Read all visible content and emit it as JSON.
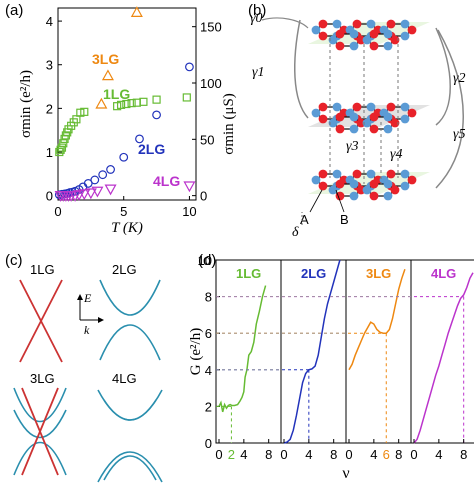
{
  "panels": {
    "a": "(a)",
    "b": "(b)",
    "c": "(c)",
    "d": "(d)"
  },
  "colors": {
    "lg1": "#66bb33",
    "lg2": "#2233bb",
    "lg3": "#ee8811",
    "lg4": "#bb33cc",
    "band": "#2a8fae",
    "band_red": "#cc3333",
    "atom_red": "#e8222a",
    "atom_blue": "#5b9bd5"
  },
  "chart_data": [
    {
      "type": "scatter",
      "panel": "(a)",
      "xlabel": "T (K)",
      "ylabel_left": "σmin (e²/h)",
      "ylabel_right": "σmin (μS)",
      "xlim": [
        0,
        10.5
      ],
      "ylim": [
        -0.1,
        4.3
      ],
      "xticks": [
        0,
        5,
        10
      ],
      "yticks_left": [
        0,
        1,
        2,
        3,
        4
      ],
      "yticks_right": [
        0,
        50,
        100,
        150
      ],
      "series": [
        {
          "name": "1LG",
          "marker": "square",
          "x": [
            0.1,
            0.2,
            0.3,
            0.4,
            0.5,
            0.6,
            0.7,
            0.8,
            1.0,
            1.2,
            1.4,
            1.7,
            2.0,
            4.5,
            4.8,
            5.2,
            5.6,
            6.0,
            6.5,
            7.5,
            9.8
          ],
          "y": [
            1.0,
            1.05,
            1.1,
            1.2,
            1.3,
            1.38,
            1.45,
            1.52,
            1.6,
            1.68,
            1.75,
            1.9,
            1.92,
            2.05,
            2.08,
            2.1,
            2.12,
            2.13,
            2.15,
            2.2,
            2.25
          ]
        },
        {
          "name": "2LG",
          "marker": "circle",
          "x": [
            0.1,
            0.3,
            0.5,
            0.7,
            0.9,
            1.1,
            1.3,
            1.6,
            1.9,
            2.3,
            2.8,
            3.4,
            4.0,
            5.0,
            6.2,
            7.5,
            10.0
          ],
          "y": [
            0.02,
            0.03,
            0.04,
            0.05,
            0.07,
            0.08,
            0.1,
            0.14,
            0.2,
            0.28,
            0.36,
            0.48,
            0.6,
            0.88,
            1.3,
            1.85,
            2.95
          ]
        },
        {
          "name": "3LG",
          "marker": "triangle-up",
          "x": [
            3.3,
            3.8,
            6.0
          ],
          "y": [
            2.1,
            2.75,
            4.2
          ]
        },
        {
          "name": "4LG",
          "marker": "triangle-down",
          "x": [
            0.2,
            0.4,
            0.6,
            0.8,
            1.0,
            1.3,
            1.6,
            2.0,
            2.5,
            3.0,
            4.0,
            10.0
          ],
          "y": [
            0.0,
            0.0,
            0.0,
            0.0,
            0.0,
            0.0,
            0.02,
            0.04,
            0.06,
            0.1,
            0.15,
            0.22
          ]
        }
      ]
    },
    {
      "type": "line",
      "panel": "(d)",
      "xlabel": "ν",
      "ylabel": "G (e²/h)",
      "ylim": [
        0,
        10
      ],
      "yticks": [
        0,
        2,
        4,
        6,
        8,
        10
      ],
      "series": [
        {
          "name": "1LG",
          "xticks": [
            0,
            4,
            8
          ],
          "marked_x": 2,
          "plateau": 2,
          "x": [
            0,
            0.3,
            0.6,
            0.9,
            1.2,
            1.5,
            1.8,
            2.1,
            2.5,
            3.0,
            3.4,
            3.7,
            4.0,
            4.2,
            4.5,
            4.8,
            5.2,
            5.6,
            6.0,
            6.5,
            7.0,
            7.5
          ],
          "y": [
            2.0,
            2.2,
            1.7,
            2.1,
            1.9,
            2.05,
            2.1,
            2.05,
            2.05,
            2.1,
            2.3,
            2.5,
            2.8,
            3.6,
            4.0,
            4.8,
            5.0,
            5.5,
            6.5,
            7.2,
            8.0,
            8.6
          ]
        },
        {
          "name": "2LG",
          "xticks": [
            0,
            4,
            8
          ],
          "marked_x": 4,
          "plateau": 4,
          "x": [
            0,
            0.5,
            1.0,
            1.5,
            2.0,
            2.5,
            3.0,
            3.5,
            4.0,
            4.5,
            5.0,
            5.5,
            6.0,
            6.5,
            7.0,
            7.5,
            8.0,
            8.5,
            9.0
          ],
          "y": [
            0,
            0.05,
            0.2,
            0.7,
            1.5,
            2.4,
            3.3,
            3.8,
            4.0,
            4.05,
            4.2,
            4.8,
            5.8,
            6.8,
            7.6,
            8.2,
            8.8,
            9.4,
            10.0
          ]
        },
        {
          "name": "3LG",
          "xticks": [
            0,
            4,
            8
          ],
          "marked_x": 6,
          "plateau": 6,
          "x": [
            0,
            0.5,
            1.0,
            1.5,
            2.0,
            2.5,
            3.0,
            3.5,
            4.0,
            4.5,
            5.0,
            5.5,
            6.0,
            6.5,
            7.0,
            7.5,
            8.0,
            8.5,
            9.0
          ],
          "y": [
            4.0,
            4.3,
            4.8,
            5.2,
            5.6,
            6.0,
            6.3,
            6.6,
            6.5,
            6.2,
            6.05,
            6.0,
            6.0,
            6.2,
            6.8,
            7.6,
            8.4,
            9.0,
            9.5
          ]
        },
        {
          "name": "4LG",
          "xticks": [
            0,
            4,
            8
          ],
          "marked_x": 8,
          "plateau": 8,
          "x": [
            0,
            0.5,
            1.0,
            1.5,
            2.0,
            2.5,
            3.0,
            3.5,
            4.0,
            4.5,
            5.0,
            5.5,
            6.0,
            6.5,
            7.0,
            7.5,
            8.0,
            8.5,
            9.0,
            9.5
          ],
          "y": [
            0,
            0.2,
            0.7,
            1.3,
            1.9,
            2.5,
            3.1,
            3.7,
            4.2,
            4.8,
            5.4,
            6.0,
            6.5,
            7.0,
            7.5,
            7.9,
            8.1,
            8.5,
            9.0,
            9.3
          ]
        }
      ]
    }
  ],
  "panel_c": {
    "labels": [
      "1LG",
      "2LG",
      "3LG",
      "4LG"
    ],
    "axis_e": "E",
    "axis_k": "k"
  },
  "panel_b": {
    "gammas": [
      "γ0",
      "γ1",
      "γ2",
      "γ5",
      "γ3",
      "γ4"
    ],
    "sites": [
      "A",
      "B"
    ],
    "delta": "δ"
  }
}
